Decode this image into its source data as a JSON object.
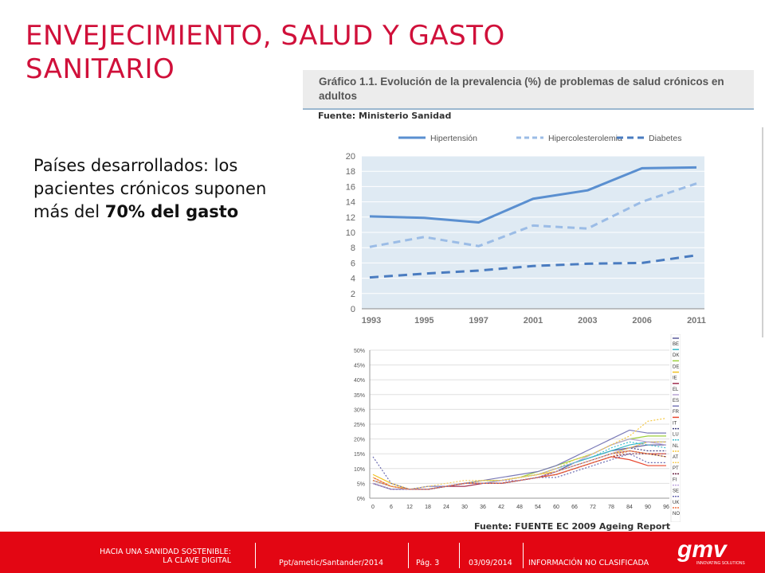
{
  "slide": {
    "title": "ENVEJECIMIENTO, SALUD Y GASTO SANITARIO",
    "text_prefix": "Países desarrollados: los pacientes crónicos suponen más del ",
    "text_bold": "70% del gasto",
    "chart1_caption": "Gráfico 1.1. Evolución de la prevalencia (%) de problemas de salud crónicos en adultos",
    "source1": "Fuente: Ministerio Sanidad",
    "source2": "Fuente: FUENTE EC 2009 Ageing Report"
  },
  "footer": {
    "project": "HACIA UNA SANIDAD SOSTENIBLE: LA CLAVE DIGITAL",
    "doc": "Ppt/ametic/Santander/2014",
    "page": "Pág. 3",
    "date": "03/09/2014",
    "classification": "INFORMACIÓN NO CLASIFICADA",
    "logo_text": "gmv",
    "logo_tagline": "INNOVATING SOLUTIONS"
  },
  "colors": {
    "accent": "#d0103a",
    "footer": "#e30613",
    "chart_bg": "#dfeaf3",
    "line_dark": "#5a8fd0",
    "line_light": "#9bbce6",
    "line_diab": "#4a7cc0"
  },
  "chart_data": [
    {
      "type": "line",
      "categories": [
        "1993",
        "1995",
        "1997",
        "2001",
        "2003",
        "2006",
        "2011"
      ],
      "yticks": [
        "0",
        "2",
        "4",
        "6",
        "8",
        "10",
        "12",
        "14",
        "16",
        "18",
        "20"
      ],
      "ylim": [
        0,
        20
      ],
      "series": [
        {
          "name": "Hipertensión",
          "values": [
            12.1,
            11.9,
            11.3,
            14.4,
            15.5,
            18.4,
            18.5
          ]
        },
        {
          "name": "Hipercolesterolemia",
          "values": [
            8.1,
            9.4,
            8.2,
            10.9,
            10.5,
            14.0,
            16.4
          ]
        },
        {
          "name": "Diabetes",
          "values": [
            4.1,
            4.6,
            5.0,
            5.6,
            5.9,
            6.0,
            7.0
          ]
        }
      ],
      "legend": "top"
    },
    {
      "type": "line",
      "x": [
        "0",
        "6",
        "12",
        "18",
        "24",
        "30",
        "36",
        "42",
        "48",
        "54",
        "60",
        "66",
        "72",
        "78",
        "84",
        "90",
        "96"
      ],
      "yticks": [
        "0%",
        "5%",
        "10%",
        "15%",
        "20%",
        "25%",
        "30%",
        "35%",
        "40%",
        "45%",
        "50%"
      ],
      "ylim": [
        0,
        50
      ],
      "legend": "right",
      "series": [
        {
          "name": "BE",
          "values": [
            6,
            4,
            3,
            3,
            4,
            5,
            5,
            5,
            6,
            7,
            9,
            12,
            14,
            16,
            17,
            18,
            18
          ]
        },
        {
          "name": "DK",
          "values": [
            5,
            3,
            3,
            3,
            4,
            5,
            6,
            6,
            7,
            8,
            10,
            12,
            14,
            16,
            18,
            19,
            19
          ]
        },
        {
          "name": "DE",
          "values": [
            6,
            4,
            3,
            3,
            4,
            5,
            6,
            6,
            7,
            9,
            11,
            13,
            15,
            18,
            20,
            21,
            21
          ]
        },
        {
          "name": "IE",
          "values": [
            8,
            5,
            3,
            3,
            4,
            5,
            5,
            6,
            7,
            8,
            9,
            11,
            13,
            15,
            17,
            19,
            19
          ]
        },
        {
          "name": "EL",
          "values": [
            5,
            3,
            3,
            3,
            4,
            4,
            5,
            5,
            6,
            7,
            9,
            11,
            13,
            15,
            16,
            15,
            15
          ]
        },
        {
          "name": "ES",
          "values": [
            6,
            4,
            3,
            3,
            4,
            5,
            5,
            6,
            7,
            8,
            10,
            12,
            15,
            18,
            20,
            19,
            18
          ]
        },
        {
          "name": "FR",
          "values": [
            5,
            3,
            3,
            4,
            4,
            5,
            6,
            7,
            8,
            9,
            11,
            14,
            17,
            20,
            23,
            22,
            22
          ]
        },
        {
          "name": "IT",
          "values": [
            7,
            4,
            3,
            3,
            4,
            5,
            5,
            5,
            6,
            7,
            8,
            10,
            12,
            14,
            13,
            11,
            11
          ]
        },
        {
          "name": "LU",
          "values": [
            5,
            3,
            3,
            3,
            4,
            5,
            5,
            6,
            6,
            7,
            9,
            11,
            13,
            15,
            17,
            16,
            16
          ]
        },
        {
          "name": "NL",
          "values": [
            6,
            4,
            3,
            3,
            4,
            5,
            5,
            6,
            7,
            8,
            10,
            12,
            14,
            17,
            19,
            18,
            17
          ]
        },
        {
          "name": "AT",
          "values": [
            6,
            4,
            3,
            3,
            4,
            5,
            6,
            6,
            7,
            8,
            10,
            13,
            15,
            18,
            21,
            26,
            27
          ]
        },
        {
          "name": "PT",
          "values": [
            7,
            4,
            3,
            4,
            5,
            6,
            6,
            6,
            7,
            8,
            9,
            11,
            13,
            15,
            16,
            15,
            14
          ]
        },
        {
          "name": "FI",
          "values": [
            5,
            3,
            3,
            3,
            4,
            5,
            5,
            5,
            6,
            7,
            8,
            10,
            12,
            14,
            15,
            15,
            14
          ]
        },
        {
          "name": "SE",
          "values": [
            5,
            3,
            3,
            3,
            4,
            5,
            5,
            6,
            6,
            7,
            9,
            11,
            13,
            15,
            17,
            19,
            19
          ]
        },
        {
          "name": "UK",
          "values": [
            14,
            5,
            3,
            3,
            4,
            5,
            5,
            5,
            6,
            7,
            7,
            9,
            11,
            13,
            15,
            12,
            12
          ]
        },
        {
          "name": "NO",
          "values": [
            6,
            4,
            3,
            3,
            4,
            5,
            5,
            5,
            6,
            7,
            8,
            10,
            12,
            14,
            16,
            15,
            15
          ]
        }
      ]
    }
  ]
}
